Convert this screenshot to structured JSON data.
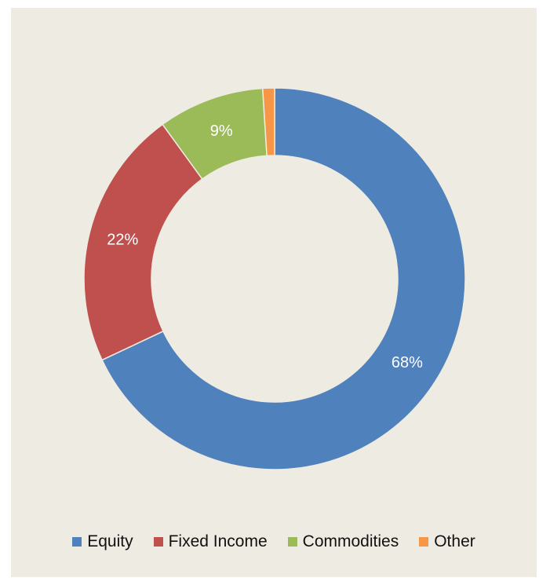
{
  "chart_data": {
    "type": "pie",
    "donut": true,
    "title": "",
    "series": [
      {
        "name": "Equity",
        "value": 68,
        "label": "68%",
        "color": "#4f81bd"
      },
      {
        "name": "Fixed Income",
        "value": 22,
        "label": "22%",
        "color": "#c0504d"
      },
      {
        "name": "Commodities",
        "value": 9,
        "label": "9%",
        "color": "#9bbb59"
      },
      {
        "name": "Other",
        "value": 1,
        "label": "",
        "color": "#f79646"
      }
    ],
    "legend": {
      "position": "bottom"
    },
    "background": "#eeebe2"
  }
}
